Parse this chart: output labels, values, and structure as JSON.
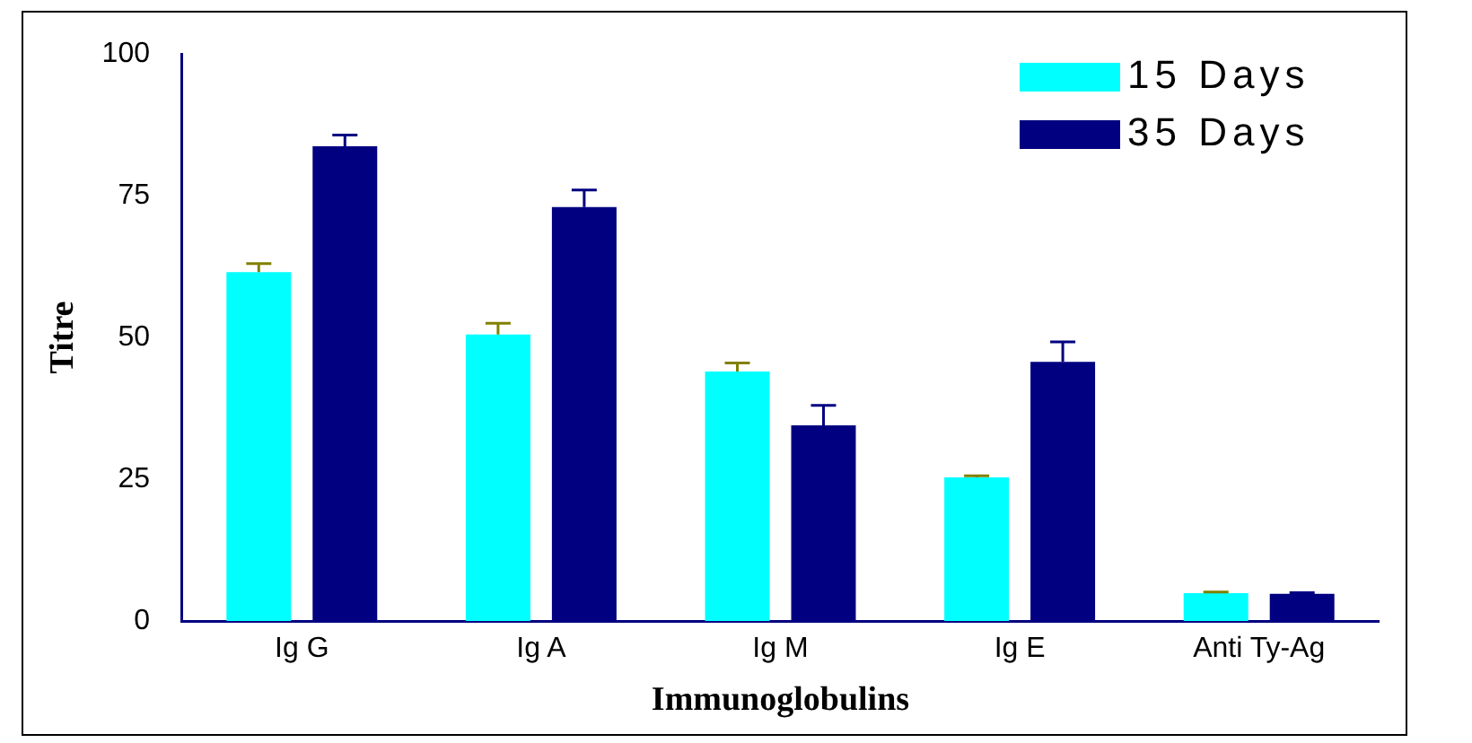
{
  "chart_data": {
    "type": "bar",
    "xlabel": "Immunoglobulins",
    "ylabel": "Titre",
    "categories": [
      "Ig G",
      "Ig A",
      "Ig M",
      "Ig E",
      "Anti Ty-Ag"
    ],
    "series": [
      {
        "name": "15 Days",
        "color": "#00ffff",
        "values": [
          61.5,
          50.5,
          44,
          25.3,
          4.9
        ],
        "errors": [
          1.5,
          2,
          1.5,
          0.3,
          0.2
        ]
      },
      {
        "name": "35 Days",
        "color": "#000080",
        "values": [
          83.7,
          73,
          34.5,
          45.7,
          4.8
        ],
        "errors": [
          2,
          3,
          3.5,
          3.5,
          0.2
        ]
      }
    ],
    "ylim": [
      0,
      100
    ],
    "yticks": [
      0,
      25,
      50,
      75,
      100
    ],
    "grid": false,
    "legend": "top right"
  }
}
